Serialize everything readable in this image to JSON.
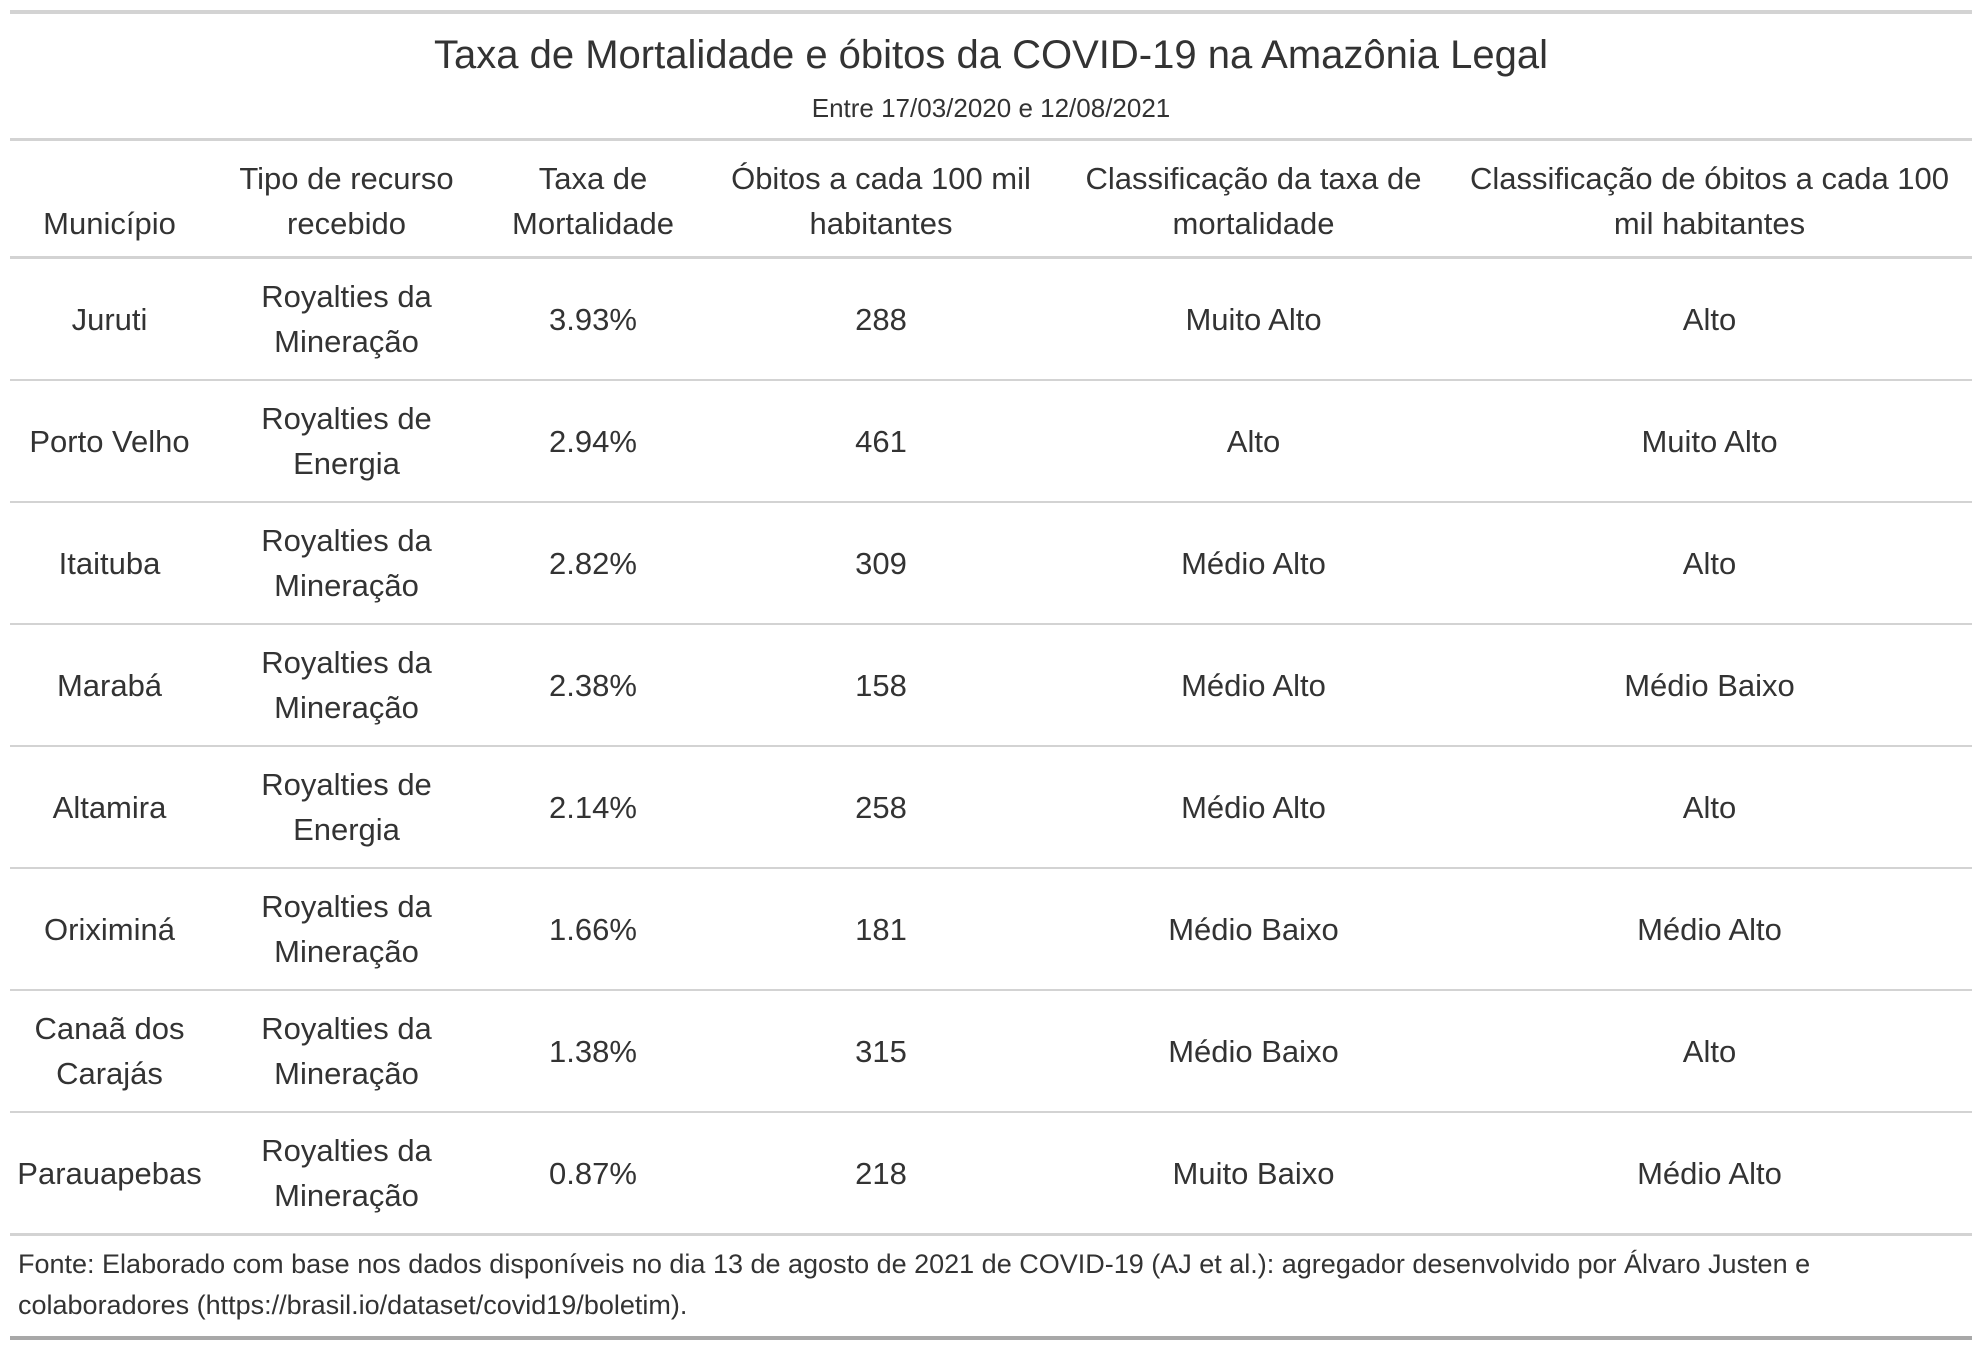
{
  "title": "Taxa de Mortalidade e óbitos da COVID-19 na Amazônia Legal",
  "subtitle": "Entre 17/03/2020 e 12/08/2021",
  "columns": [
    "Município",
    "Tipo de recurso recebido",
    "Taxa de Mortalidade",
    "Óbitos a cada 100 mil habitantes",
    "Classificação da taxa de mortalidade",
    "Classificação de óbitos a cada 100 mil habitantes"
  ],
  "rows": [
    [
      "Juruti",
      "Royalties da Mineração",
      "3.93%",
      "288",
      "Muito Alto",
      "Alto"
    ],
    [
      "Porto Velho",
      "Royalties de Energia",
      "2.94%",
      "461",
      "Alto",
      "Muito Alto"
    ],
    [
      "Itaituba",
      "Royalties da Mineração",
      "2.82%",
      "309",
      "Médio Alto",
      "Alto"
    ],
    [
      "Marabá",
      "Royalties da Mineração",
      "2.38%",
      "158",
      "Médio Alto",
      "Médio Baixo"
    ],
    [
      "Altamira",
      "Royalties de Energia",
      "2.14%",
      "258",
      "Médio Alto",
      "Alto"
    ],
    [
      "Oriximiná",
      "Royalties da Mineração",
      "1.66%",
      "181",
      "Médio Baixo",
      "Médio Alto"
    ],
    [
      "Canaã dos Carajás",
      "Royalties da Mineração",
      "1.38%",
      "315",
      "Médio Baixo",
      "Alto"
    ],
    [
      "Parauapebas",
      "Royalties da Mineração",
      "0.87%",
      "218",
      "Muito Baixo",
      "Médio Alto"
    ]
  ],
  "footnote": "Fonte: Elaborado com base nos dados disponíveis no dia 13 de agosto de 2021 de COVID-19 (AJ et al.): agregador desenvolvido por Álvaro Justen e colaboradores (https://brasil.io/dataset/covid19/boletim).",
  "colors": {
    "text": "#333333",
    "rule": "#d3d3d3",
    "rule_dark": "#a8a8a8"
  }
}
